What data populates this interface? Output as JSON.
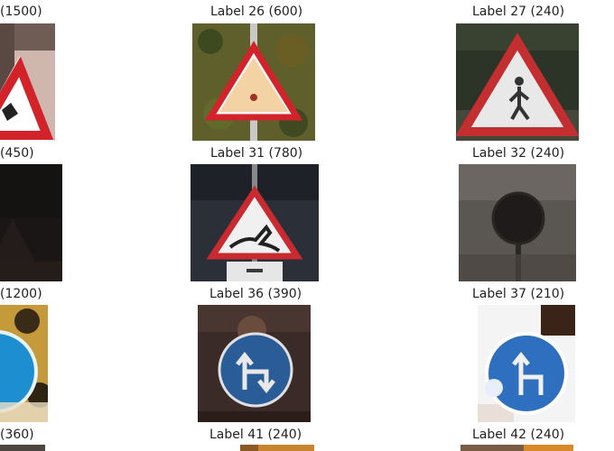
{
  "grid": {
    "labels": [
      "(1500)",
      "Label 26 (600)",
      "Label 27 (240)",
      "(450)",
      "Label 31 (780)",
      "Label 32 (240)",
      "(1200)",
      "Label 36 (390)",
      "Label 37 (210)",
      "(360)",
      "Label 41 (240)",
      "Label 42 (240)"
    ]
  },
  "colors": {
    "sign_red": "#d2232a",
    "sign_blue": "#2a66b5",
    "sign_white": "#f2f2f2",
    "foliage": "#5a5a2a"
  }
}
